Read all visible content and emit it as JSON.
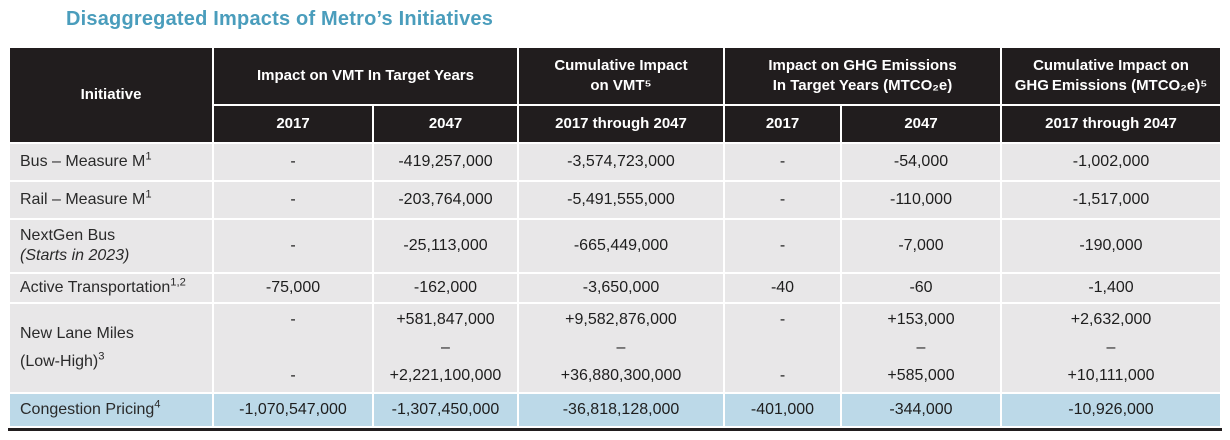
{
  "page": {
    "title": "Disaggregated Impacts of Metro’s Initiatives"
  },
  "colors": {
    "title": "#4A9DBC",
    "header_bg": "#211D1E",
    "header_text": "#FFFFFF",
    "row_bg": "#E8E7E8",
    "highlight_row_bg": "#BCD9E8",
    "bottom_border": "#211D1E"
  },
  "table": {
    "groups": [
      {
        "label": "Initiative",
        "cols": 1,
        "rowspan": 2
      },
      {
        "label": "Impact on VMT In Target Years",
        "cols": 2
      },
      {
        "label": "Cumulative Impact\non VMT⁵",
        "cols": 1
      },
      {
        "label": "Impact on GHG Emissions\nIn Target Years (MTCO₂e)",
        "cols": 2
      },
      {
        "label": "Cumulative Impact on\nGHG Emissions (MTCO₂e)⁵",
        "cols": 1
      }
    ],
    "year_headers": [
      "2017",
      "2047",
      "2017 through 2047",
      "2017",
      "2047",
      "2017 through 2047"
    ],
    "rows": [
      {
        "initiative": {
          "name": "Bus – Measure M",
          "sup": "1"
        },
        "values": [
          "-",
          "-419,257,000",
          "-3,574,723,000",
          "-",
          "-54,000",
          "-1,002,000"
        ]
      },
      {
        "initiative": {
          "name": "Rail – Measure M",
          "sup": "1"
        },
        "values": [
          "-",
          "-203,764,000",
          "-5,491,555,000",
          "-",
          "-110,000",
          "-1,517,000"
        ]
      },
      {
        "initiative": {
          "name": "NextGen Bus",
          "sub": "(Starts in 2023)",
          "sub_italic": true
        },
        "values": [
          "-",
          "-25,113,000",
          "-665,449,000",
          "-",
          "-7,000",
          "-190,000"
        ]
      },
      {
        "initiative": {
          "name": "Active Transportation",
          "sup": "1,2"
        },
        "values": [
          "-75,000",
          "-162,000",
          "-3,650,000",
          "-40",
          "-60",
          "-1,400"
        ]
      },
      {
        "initiative": {
          "name": "New Lane Miles",
          "sub": "(Low-High)",
          "sub_sup": "3",
          "sub_italic": false
        },
        "tall": true,
        "values": [
          "-\n \n-",
          "+581,847,000\n–\n+2,221,100,000",
          "+9,582,876,000\n–\n+36,880,300,000",
          "-\n \n-",
          "+153,000\n–\n+585,000",
          "+2,632,000\n–\n+10,111,000"
        ]
      },
      {
        "initiative": {
          "name": "Congestion Pricing",
          "sup": "4"
        },
        "highlight": true,
        "values": [
          "-1,070,547,000",
          "-1,307,450,000",
          "-36,818,128,000",
          "-401,000",
          "-344,000",
          "-10,926,000"
        ]
      }
    ]
  }
}
